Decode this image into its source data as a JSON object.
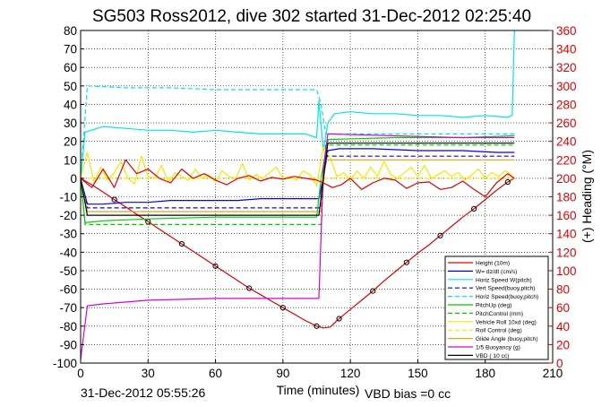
{
  "chart_data": {
    "type": "line",
    "title": "SG503 Ross2012, dive 302 started 31-Dec-2012 02:25:40",
    "xlabel": "Time (minutes)",
    "ylabel_right": "(+) Heading (°M)",
    "footer_left": "31-Dec-2012 05:55:26",
    "footer_right": "VBD bias =0 cc",
    "xlim": [
      0,
      210
    ],
    "ylim": [
      -100,
      80
    ],
    "y2lim": [
      0,
      360
    ],
    "x_ticks": [
      0,
      30,
      60,
      90,
      120,
      150,
      180,
      210
    ],
    "y_ticks": [
      -100,
      -90,
      -80,
      -70,
      -60,
      -50,
      -40,
      -30,
      -20,
      -10,
      0,
      10,
      20,
      30,
      40,
      50,
      60,
      70,
      80
    ],
    "y2_ticks": [
      0,
      20,
      40,
      60,
      80,
      100,
      120,
      140,
      160,
      180,
      200,
      220,
      240,
      260,
      280,
      300,
      320,
      340,
      360
    ],
    "grid": true,
    "legend_position": "bottom-right",
    "colors": {
      "heading_axis": "#e00000"
    },
    "legend": [
      {
        "label": "Height (10m)",
        "color": "#e00000",
        "style": "solid"
      },
      {
        "label": "W= dz/dt (cm/s)",
        "color": "#0000ff",
        "style": "solid"
      },
      {
        "label": "Horiz Speed W(pitch)",
        "color": "#00e5e5",
        "style": "solid"
      },
      {
        "label": "Vert Speed(buoy,pitch)",
        "color": "#0000ff",
        "style": "dashed"
      },
      {
        "label": "Horiz Speed(buoy,pitch)",
        "color": "#00e5e5",
        "style": "dashed"
      },
      {
        "label": "PitchUp (deg)",
        "color": "#00cc00",
        "style": "solid"
      },
      {
        "label": "PitchControl (mm)",
        "color": "#00cc00",
        "style": "dashed"
      },
      {
        "label": "Vehicle Roll 10xd (deg)",
        "color": "#f5e600",
        "style": "solid"
      },
      {
        "label": "Roll Control (deg)",
        "color": "#f5e600",
        "style": "dashed"
      },
      {
        "label": "Glide Angle (buoy,pitch)",
        "color": "#e6a800",
        "style": "solid"
      },
      {
        "label": "1/5 Buoyancy (g)",
        "color": "#d800d8",
        "style": "solid"
      },
      {
        "label": "VBD ( 10 cc)",
        "color": "#000000",
        "style": "solid"
      }
    ],
    "series": [
      {
        "name": "Height (10m)",
        "color": "#e00000",
        "x": [
          0,
          5,
          10,
          15,
          20,
          25,
          30,
          35,
          40,
          45,
          50,
          55,
          60,
          65,
          70,
          75,
          80,
          85,
          90,
          95,
          100,
          105,
          108,
          111,
          115,
          120,
          125,
          130,
          135,
          140,
          145,
          150,
          155,
          160,
          165,
          170,
          175,
          180,
          185,
          190,
          193
        ],
        "y": [
          0,
          -3.5,
          -7.5,
          -11.5,
          -15.5,
          -19.5,
          -23.5,
          -27.5,
          -31.5,
          -35.5,
          -39.5,
          -43.5,
          -47.5,
          -51.5,
          -55.5,
          -59.5,
          -63,
          -66.5,
          -70,
          -73.5,
          -77,
          -80,
          -81,
          -80.5,
          -76,
          -71,
          -66,
          -61,
          -55.5,
          -50.5,
          -45.5,
          -40.5,
          -36,
          -31,
          -26,
          -21,
          -16.5,
          -11.5,
          -6.5,
          -2,
          0
        ]
      },
      {
        "name": "W= dz/dt (cm/s)",
        "color": "#0000ff",
        "x": [
          0,
          3,
          10,
          20,
          30,
          40,
          50,
          60,
          70,
          80,
          90,
          100,
          106,
          108,
          110,
          115,
          130,
          150,
          170,
          185,
          193
        ],
        "y": [
          0,
          -14,
          -14,
          -13,
          -13,
          -12,
          -12,
          -12,
          -12,
          -11,
          -11,
          -11,
          -11,
          0,
          15,
          16,
          16,
          15,
          15,
          14,
          14
        ]
      },
      {
        "name": "Horiz Speed W(pitch)",
        "color": "#00e5e5",
        "x": [
          0,
          2,
          10,
          20,
          30,
          40,
          50,
          60,
          70,
          80,
          90,
          100,
          105,
          106,
          108,
          110,
          113,
          120,
          130,
          140,
          150,
          160,
          170,
          180,
          190,
          192,
          193
        ],
        "y": [
          0,
          25,
          28,
          27,
          26,
          26,
          25,
          26,
          25,
          24,
          24,
          24,
          22,
          42,
          15,
          30,
          35,
          36,
          35,
          35,
          34,
          34,
          33,
          34,
          33,
          34,
          80
        ]
      },
      {
        "name": "Vert Speed(buoy,pitch)",
        "color": "#0000ff",
        "x": [
          0,
          3,
          105,
          107,
          109,
          193
        ],
        "y": [
          0,
          -16,
          -16,
          -16,
          12,
          12
        ]
      },
      {
        "name": "Horiz Speed(buoy,pitch)",
        "color": "#00e5e5",
        "x": [
          0,
          3,
          20,
          40,
          60,
          80,
          100,
          105,
          107,
          109,
          193
        ],
        "y": [
          0,
          50,
          49,
          49,
          48,
          48,
          48,
          48,
          40,
          24,
          24
        ]
      },
      {
        "name": "PitchUp (deg)",
        "color": "#00cc00",
        "x": [
          0,
          2,
          10,
          30,
          60,
          90,
          105,
          107,
          110,
          140,
          170,
          193
        ],
        "y": [
          0,
          -24,
          -23,
          -22,
          -21,
          -21,
          -21,
          0,
          21,
          22,
          22,
          23
        ]
      },
      {
        "name": "PitchControl (mm)",
        "color": "#00cc00",
        "x": [
          0,
          2,
          105,
          107,
          109,
          193
        ],
        "y": [
          0,
          -25,
          -25,
          -25,
          18,
          18
        ]
      },
      {
        "name": "Vehicle Roll 10xd (deg)",
        "color": "#f5e600",
        "x": [
          0,
          3,
          6,
          9,
          12,
          15,
          18,
          21,
          24,
          27,
          30,
          33,
          36,
          39,
          42,
          45,
          48,
          51,
          54,
          57,
          60,
          63,
          66,
          69,
          72,
          75,
          78,
          81,
          84,
          87,
          90,
          93,
          96,
          99,
          102,
          105,
          108,
          111,
          114,
          117,
          120,
          123,
          126,
          129,
          132,
          135,
          138,
          141,
          144,
          147,
          150,
          153,
          156,
          159,
          162,
          165,
          168,
          171,
          174,
          177,
          180,
          183,
          186,
          189,
          192
        ],
        "y": [
          0,
          14,
          -2,
          6,
          -1,
          3,
          9,
          0,
          -3,
          12,
          1,
          0,
          7,
          -2,
          3,
          1,
          -1,
          5,
          0,
          2,
          -2,
          4,
          1,
          0,
          8,
          -1,
          2,
          0,
          3,
          6,
          0,
          1,
          -1,
          4,
          2,
          -4,
          17,
          11,
          1,
          3,
          -1,
          4,
          0,
          6,
          1,
          9,
          2,
          0,
          3,
          6,
          1,
          7,
          0,
          2,
          4,
          1,
          3,
          -1,
          2,
          5,
          0,
          3,
          1,
          4,
          2
        ]
      },
      {
        "name": "Roll Control (deg)",
        "color": "#f5e600",
        "x": [
          0,
          3,
          193
        ],
        "y": [
          0,
          0,
          0
        ]
      },
      {
        "name": "Glide Angle (buoy,pitch)",
        "color": "#e6a800",
        "x": [
          0,
          3,
          105,
          107,
          109,
          193
        ],
        "y": [
          0,
          -18,
          -18,
          -18,
          10,
          10
        ]
      },
      {
        "name": "1/5 Buoyancy (g)",
        "color": "#d800d8",
        "x": [
          0,
          3,
          10,
          30,
          60,
          90,
          104,
          106,
          108,
          110,
          140,
          170,
          193
        ],
        "y": [
          -98,
          -69,
          -68,
          -66,
          -65,
          -65,
          -65,
          -65,
          5,
          24,
          23,
          22,
          22
        ]
      },
      {
        "name": "VBD ( 10 cc)",
        "color": "#000000",
        "x": [
          0,
          3,
          104,
          106,
          108,
          110,
          193
        ],
        "y": [
          0,
          -20,
          -20,
          -20,
          0,
          19,
          19
        ]
      },
      {
        "name": "Heading (°M)",
        "color": "#e00000",
        "axis": "right",
        "x": [
          0,
          5,
          10,
          15,
          20,
          25,
          30,
          35,
          40,
          45,
          50,
          55,
          60,
          65,
          70,
          75,
          80,
          85,
          90,
          95,
          100,
          105,
          108,
          112,
          116,
          120,
          125,
          130,
          135,
          140,
          145,
          150,
          155,
          160,
          165,
          170,
          175,
          180,
          185,
          190,
          193
        ],
        "y": [
          200,
          190,
          210,
          190,
          220,
          205,
          210,
          200,
          195,
          210,
          200,
          205,
          198,
          193,
          200,
          203,
          197,
          201,
          199,
          202,
          200,
          198,
          195,
          190,
          193,
          200,
          188,
          195,
          200,
          198,
          189,
          195,
          196,
          188,
          190,
          197,
          188,
          180,
          195,
          205,
          200
        ]
      }
    ]
  }
}
